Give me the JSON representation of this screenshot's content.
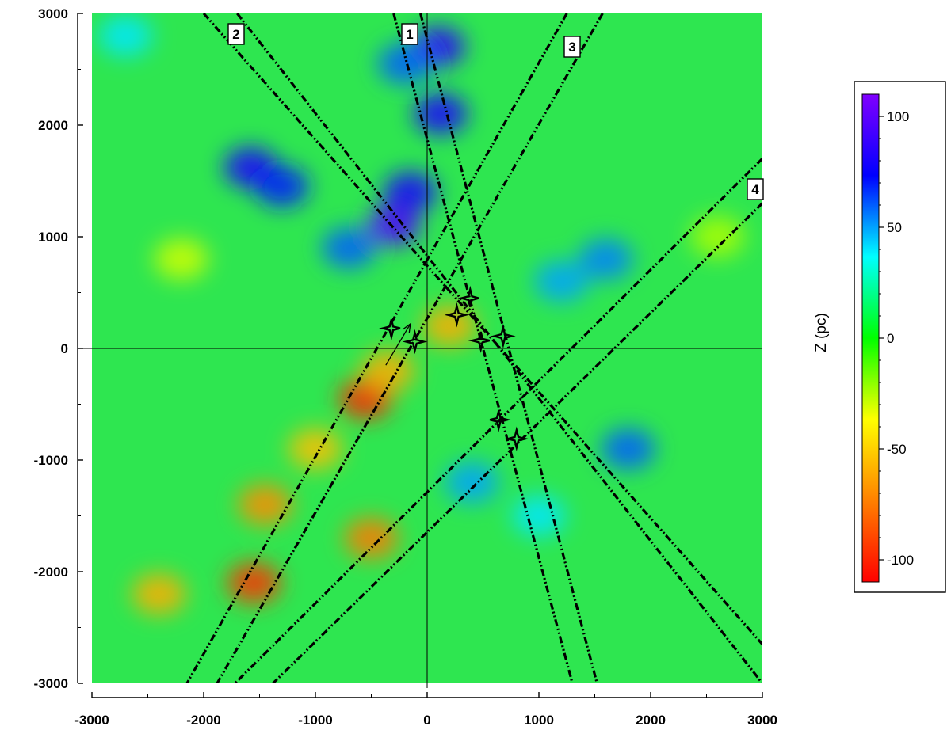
{
  "chart_data": {
    "type": "heatmap",
    "title": "",
    "xlabel": "",
    "ylabel": "",
    "xlim": [
      -3000,
      3000
    ],
    "ylim": [
      -3000,
      3000
    ],
    "x_ticks": [
      -3000,
      -2000,
      -1000,
      0,
      1000,
      2000,
      3000
    ],
    "y_ticks": [
      -3000,
      -2000,
      -1000,
      0,
      1000,
      2000,
      3000
    ],
    "grid": false,
    "colorbar": {
      "title": "Z (pc)",
      "range": [
        -110,
        110
      ],
      "ticks": [
        100,
        50,
        0,
        -50,
        -100
      ],
      "colors": [
        "#ff0000",
        "#ff8000",
        "#ffff00",
        "#00ff00",
        "#00ffff",
        "#0000ff",
        "#8000ff"
      ]
    },
    "blobs": [
      {
        "x": 100,
        "y": 2700,
        "z": 85
      },
      {
        "x": 120,
        "y": 2100,
        "z": 80
      },
      {
        "x": -200,
        "y": 2550,
        "z": 60
      },
      {
        "x": -1580,
        "y": 1620,
        "z": 80
      },
      {
        "x": -1300,
        "y": 1450,
        "z": 70
      },
      {
        "x": -300,
        "y": 1100,
        "z": 95
      },
      {
        "x": -150,
        "y": 1400,
        "z": 80
      },
      {
        "x": -700,
        "y": 900,
        "z": 60
      },
      {
        "x": 1600,
        "y": 800,
        "z": 55
      },
      {
        "x": 1200,
        "y": 600,
        "z": 50
      },
      {
        "x": 1800,
        "y": -900,
        "z": 60
      },
      {
        "x": 400,
        "y": -1200,
        "z": 50
      },
      {
        "x": 1000,
        "y": -1500,
        "z": 40
      },
      {
        "x": -2700,
        "y": 2800,
        "z": 40
      },
      {
        "x": -2200,
        "y": 800,
        "z": -30
      },
      {
        "x": -550,
        "y": -450,
        "z": -100
      },
      {
        "x": -350,
        "y": -200,
        "z": -60
      },
      {
        "x": -1550,
        "y": -2100,
        "z": -95
      },
      {
        "x": -1450,
        "y": -1400,
        "z": -70
      },
      {
        "x": -500,
        "y": -1700,
        "z": -75
      },
      {
        "x": -2400,
        "y": -2200,
        "z": -60
      },
      {
        "x": -1000,
        "y": -900,
        "z": -55
      },
      {
        "x": 200,
        "y": 200,
        "z": -60
      },
      {
        "x": 2600,
        "y": 1000,
        "z": -25
      }
    ],
    "lines": [
      {
        "label": "1",
        "pairs": [
          [
            [
              -300,
              3000
            ],
            [
              1300,
              -3000
            ]
          ],
          [
            [
              -60,
              3000
            ],
            [
              1520,
              -3000
            ]
          ]
        ]
      },
      {
        "label": "2",
        "pairs": [
          [
            [
              -2000,
              3000
            ],
            [
              3000,
              -2650
            ]
          ],
          [
            [
              -1700,
              3000
            ],
            [
              3000,
              -3000
            ]
          ]
        ]
      },
      {
        "label": "3",
        "pairs": [
          [
            [
              1250,
              3000
            ],
            [
              -2150,
              -3000
            ]
          ],
          [
            [
              1570,
              3000
            ],
            [
              -1880,
              -3000
            ]
          ]
        ]
      },
      {
        "label": "4",
        "pairs": [
          [
            [
              3000,
              1700
            ],
            [
              -1720,
              -3000
            ]
          ],
          [
            [
              3000,
              1300
            ],
            [
              -1380,
              -3000
            ]
          ]
        ]
      }
    ],
    "markers": [
      {
        "x": 385,
        "y": 450
      },
      {
        "x": 265,
        "y": 300
      },
      {
        "x": 480,
        "y": 70
      },
      {
        "x": 680,
        "y": 110
      },
      {
        "x": -320,
        "y": 180
      },
      {
        "x": -110,
        "y": 60
      },
      {
        "x": 640,
        "y": -640
      },
      {
        "x": 800,
        "y": -810
      }
    ],
    "arrow": {
      "from": [
        -370,
        -150
      ],
      "to": [
        -150,
        220
      ]
    }
  }
}
